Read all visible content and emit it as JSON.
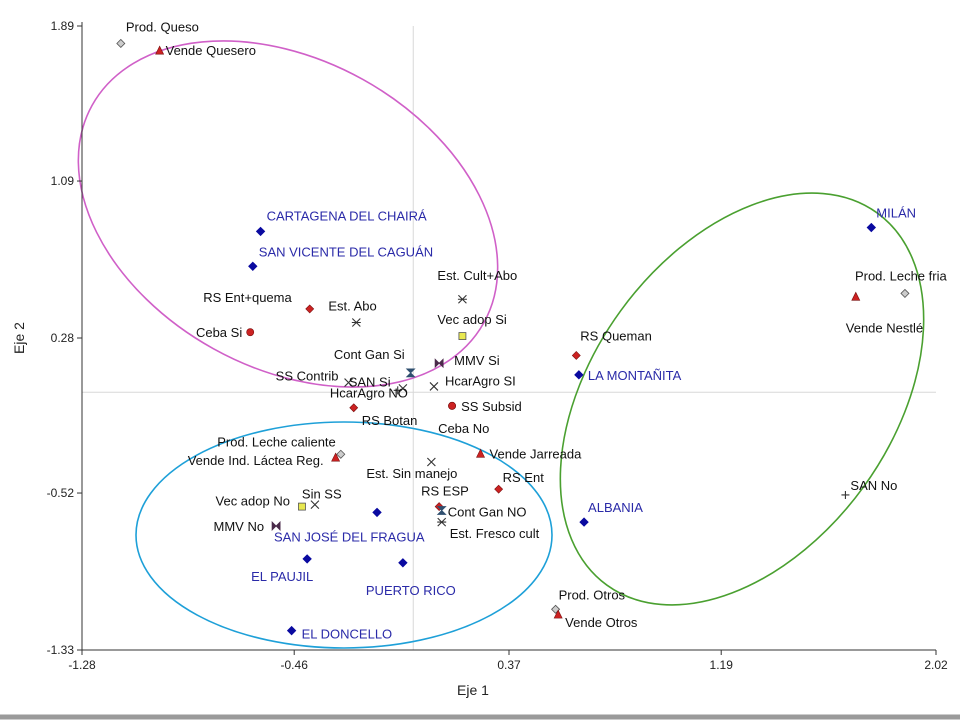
{
  "chart_data": {
    "type": "scatter",
    "title": "",
    "xlabel": "Eje 1",
    "ylabel": "Eje 2",
    "xlim": [
      -1.28,
      2.02
    ],
    "ylim": [
      -1.33,
      1.89
    ],
    "xticks": [
      "-1.28",
      "-0.46",
      "0.37",
      "1.19",
      "2.02"
    ],
    "yticks": [
      "1.89",
      "1.09",
      "0.28",
      "-0.52",
      "-1.33"
    ],
    "grid": "origin lines only",
    "colors": {
      "municipio": "#0a0aa0",
      "red": "#cc2222",
      "yellow": "#e8e850",
      "open": "#cccccc",
      "ellipse_pink": "#d060c8",
      "ellipse_green": "#4aa030",
      "ellipse_blue": "#1ea0d8"
    },
    "points": [
      {
        "label": "Prod. Queso",
        "x": -1.13,
        "y": 1.8,
        "marker": "diamond-open"
      },
      {
        "label": "Vende Quesero",
        "x": -0.98,
        "y": 1.76,
        "marker": "triangle"
      },
      {
        "label": "CARTAGENA DEL CHAIRÁ",
        "x": -0.59,
        "y": 0.83,
        "marker": "diamond-blue"
      },
      {
        "label": "SAN VICENTE DEL CAGUÁN",
        "x": -0.62,
        "y": 0.65,
        "marker": "diamond-blue"
      },
      {
        "label": "RS Ent+quema",
        "x": -0.4,
        "y": 0.43,
        "marker": "diamond-red"
      },
      {
        "label": "Est. Abo",
        "x": -0.22,
        "y": 0.36,
        "marker": "asterisk"
      },
      {
        "label": "Ceba Si",
        "x": -0.63,
        "y": 0.31,
        "marker": "circle-red"
      },
      {
        "label": "Est. Cult+Abo",
        "x": 0.19,
        "y": 0.48,
        "marker": "asterisk"
      },
      {
        "label": "Vec adop Si",
        "x": 0.19,
        "y": 0.29,
        "marker": "square-yellow"
      },
      {
        "label": "Cont Gan Si",
        "x": -0.01,
        "y": 0.1,
        "marker": "hourglass"
      },
      {
        "label": "MMV Si",
        "x": 0.1,
        "y": 0.15,
        "marker": "bowtie"
      },
      {
        "label": "SS Contrib",
        "x": -0.25,
        "y": 0.05,
        "marker": "x"
      },
      {
        "label": "SAN Si",
        "x": -0.06,
        "y": 0.01,
        "marker": "cross"
      },
      {
        "label": "HcarAgro SI",
        "x": 0.08,
        "y": 0.03,
        "marker": "x"
      },
      {
        "label": "HcarAgro NO",
        "x": -0.04,
        "y": 0.02,
        "marker": "x"
      },
      {
        "label": "RS Botan",
        "x": -0.23,
        "y": -0.08,
        "marker": "diamond-red"
      },
      {
        "label": "SS Subsid",
        "x": 0.15,
        "y": -0.07,
        "marker": "circle-red"
      },
      {
        "label": "Ceba No",
        "x": 0.15,
        "y": -0.07,
        "marker": "circle-red"
      },
      {
        "label": "Prod. Leche caliente",
        "x": -0.28,
        "y": -0.32,
        "marker": "diamond-open"
      },
      {
        "label": "Vende Ind. Láctea Reg.",
        "x": -0.3,
        "y": -0.34,
        "marker": "triangle"
      },
      {
        "label": "Est. Sin manejo",
        "x": 0.07,
        "y": -0.36,
        "marker": "x"
      },
      {
        "label": "Vende Jarreada",
        "x": 0.26,
        "y": -0.32,
        "marker": "triangle"
      },
      {
        "label": "RS Ent",
        "x": 0.33,
        "y": -0.5,
        "marker": "diamond-red"
      },
      {
        "label": "RS ESP",
        "x": 0.1,
        "y": -0.59,
        "marker": "diamond-red"
      },
      {
        "label": "Cont Gan NO",
        "x": 0.11,
        "y": -0.61,
        "marker": "hourglass"
      },
      {
        "label": "Est. Fresco cult",
        "x": 0.11,
        "y": -0.67,
        "marker": "asterisk"
      },
      {
        "label": "Sin SS",
        "x": -0.38,
        "y": -0.58,
        "marker": "x"
      },
      {
        "label": "Vec adop No",
        "x": -0.43,
        "y": -0.59,
        "marker": "square-yellow"
      },
      {
        "label": "MMV No",
        "x": -0.53,
        "y": -0.69,
        "marker": "bowtie"
      },
      {
        "label": "SAN JOSÉ DEL FRAGUA",
        "x": -0.14,
        "y": -0.62,
        "marker": "diamond-blue"
      },
      {
        "label": "EL PAUJIL",
        "x": -0.41,
        "y": -0.86,
        "marker": "diamond-blue"
      },
      {
        "label": "PUERTO RICO",
        "x": -0.04,
        "y": -0.88,
        "marker": "diamond-blue"
      },
      {
        "label": "EL DONCELLO",
        "x": -0.47,
        "y": -1.23,
        "marker": "diamond-blue"
      },
      {
        "label": "RS Queman",
        "x": 0.63,
        "y": 0.19,
        "marker": "diamond-red"
      },
      {
        "label": "LA MONTAÑITA",
        "x": 0.64,
        "y": 0.09,
        "marker": "diamond-blue"
      },
      {
        "label": "ALBANIA",
        "x": 0.66,
        "y": -0.67,
        "marker": "diamond-blue"
      },
      {
        "label": "Prod. Otros",
        "x": 0.55,
        "y": -1.12,
        "marker": "diamond-open"
      },
      {
        "label": "Vende Otros",
        "x": 0.56,
        "y": -1.15,
        "marker": "triangle"
      },
      {
        "label": "MILÁN",
        "x": 1.77,
        "y": 0.85,
        "marker": "diamond-blue"
      },
      {
        "label": "Prod. Leche fria",
        "x": 1.9,
        "y": 0.51,
        "marker": "diamond-open"
      },
      {
        "label": "Vende Nestlé",
        "x": 1.71,
        "y": 0.49,
        "marker": "triangle"
      },
      {
        "label": "SAN No",
        "x": 1.67,
        "y": -0.53,
        "marker": "cross"
      }
    ]
  }
}
